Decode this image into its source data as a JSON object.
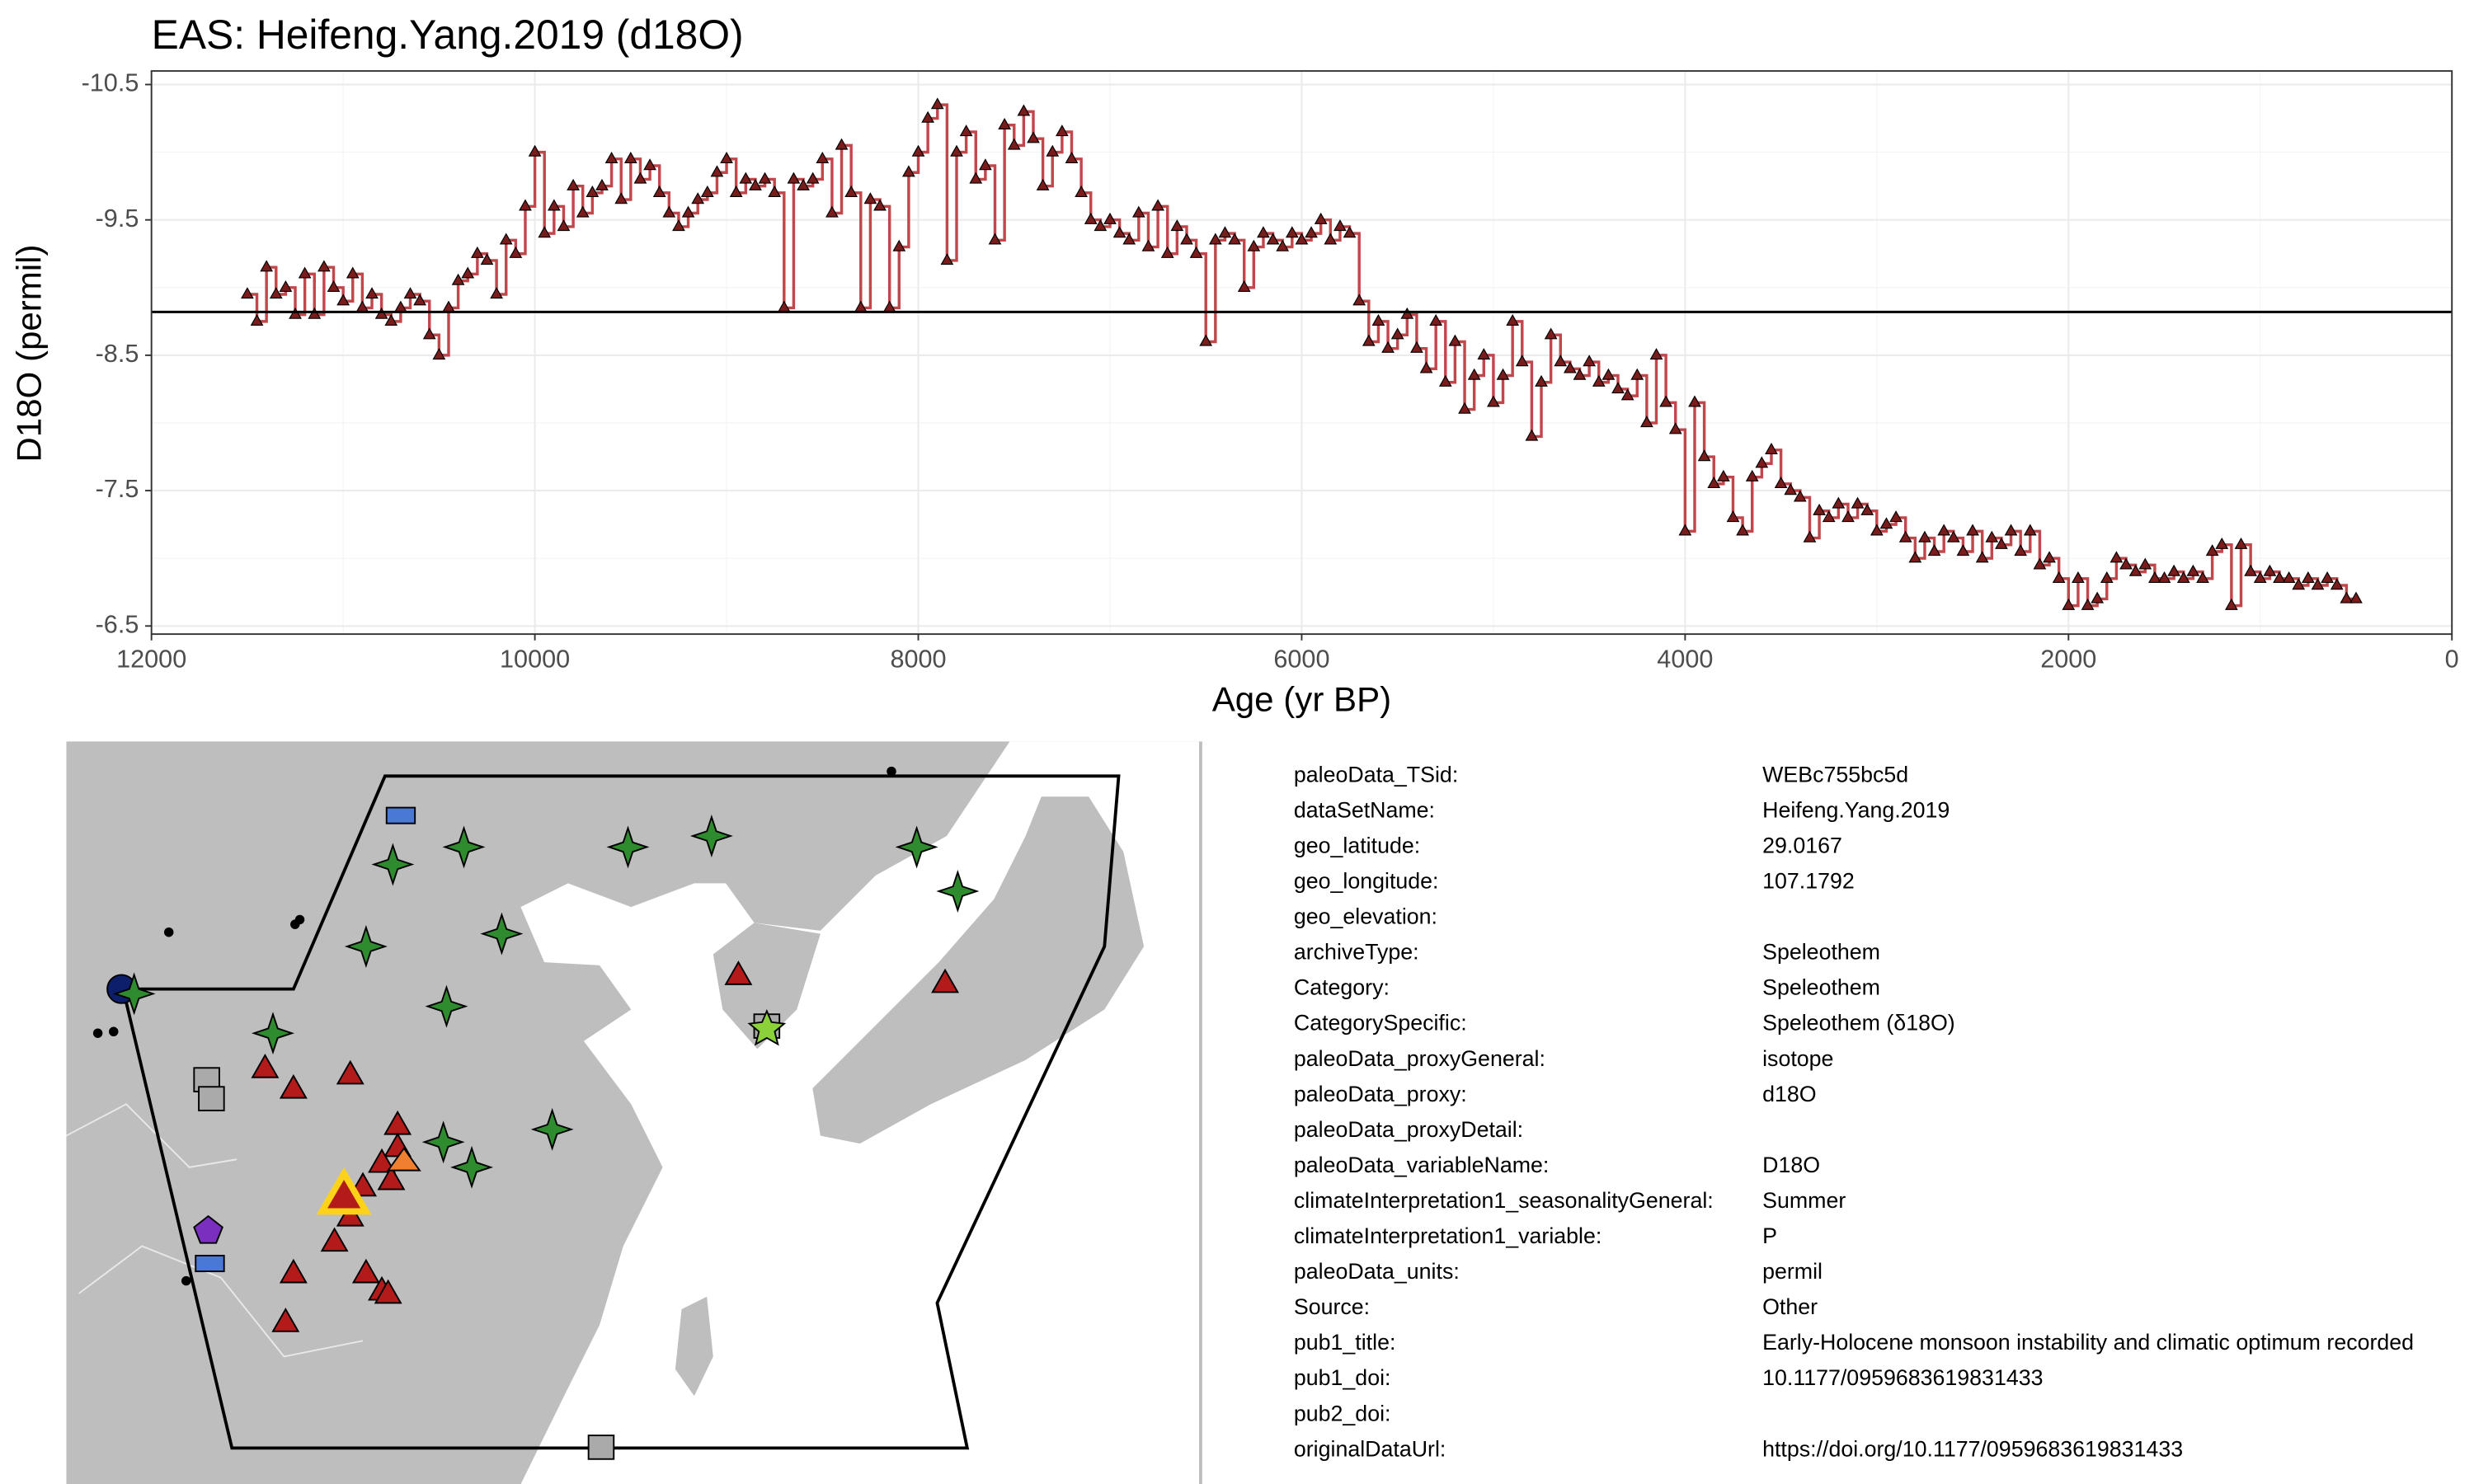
{
  "chart_data": {
    "type": "line",
    "title": "EAS: Heifeng.Yang.2019 (d18O)",
    "xlabel": "Age (yr BP)",
    "ylabel": "D18O (permil)",
    "x": [
      11500,
      11450,
      11400,
      11350,
      11300,
      11250,
      11200,
      11150,
      11100,
      11050,
      11000,
      10950,
      10900,
      10850,
      10800,
      10750,
      10700,
      10650,
      10600,
      10550,
      10500,
      10450,
      10400,
      10350,
      10300,
      10250,
      10200,
      10150,
      10100,
      10050,
      10000,
      9950,
      9900,
      9850,
      9800,
      9750,
      9700,
      9650,
      9600,
      9550,
      9500,
      9450,
      9400,
      9350,
      9300,
      9250,
      9200,
      9150,
      9100,
      9050,
      9000,
      8950,
      8900,
      8850,
      8800,
      8750,
      8700,
      8650,
      8600,
      8550,
      8500,
      8450,
      8400,
      8350,
      8300,
      8250,
      8200,
      8150,
      8100,
      8050,
      8000,
      7950,
      7900,
      7850,
      7800,
      7750,
      7700,
      7650,
      7600,
      7550,
      7500,
      7450,
      7400,
      7350,
      7300,
      7250,
      7200,
      7150,
      7100,
      7050,
      7000,
      6950,
      6900,
      6850,
      6800,
      6750,
      6700,
      6650,
      6600,
      6550,
      6500,
      6450,
      6400,
      6350,
      6300,
      6250,
      6200,
      6150,
      6100,
      6050,
      6000,
      5950,
      5900,
      5850,
      5800,
      5750,
      5700,
      5650,
      5600,
      5550,
      5500,
      5450,
      5400,
      5350,
      5300,
      5250,
      5200,
      5150,
      5100,
      5050,
      5000,
      4950,
      4900,
      4850,
      4800,
      4750,
      4700,
      4650,
      4600,
      4550,
      4500,
      4450,
      4400,
      4350,
      4300,
      4250,
      4200,
      4150,
      4100,
      4050,
      4000,
      3950,
      3900,
      3850,
      3800,
      3750,
      3700,
      3650,
      3600,
      3550,
      3500,
      3450,
      3400,
      3350,
      3300,
      3250,
      3200,
      3150,
      3100,
      3050,
      3000,
      2950,
      2900,
      2850,
      2800,
      2750,
      2700,
      2650,
      2600,
      2550,
      2500,
      2450,
      2400,
      2350,
      2300,
      2250,
      2200,
      2150,
      2100,
      2050,
      2000,
      1950,
      1900,
      1850,
      1800,
      1750,
      1700,
      1650,
      1600,
      1550,
      1500,
      1450,
      1400,
      1350,
      1300,
      1250,
      1200,
      1150,
      1100,
      1050,
      1000,
      950,
      900,
      850,
      800,
      750,
      700,
      650,
      600,
      550,
      500
    ],
    "values": [
      -8.95,
      -8.75,
      -9.15,
      -8.95,
      -9.0,
      -8.8,
      -9.1,
      -8.8,
      -9.15,
      -9.0,
      -8.9,
      -9.1,
      -8.85,
      -8.95,
      -8.8,
      -8.75,
      -8.85,
      -8.95,
      -8.9,
      -8.65,
      -8.5,
      -8.85,
      -9.05,
      -9.1,
      -9.25,
      -9.2,
      -8.95,
      -9.35,
      -9.25,
      -9.6,
      -10.0,
      -9.4,
      -9.6,
      -9.45,
      -9.75,
      -9.55,
      -9.7,
      -9.75,
      -9.95,
      -9.65,
      -9.95,
      -9.8,
      -9.9,
      -9.7,
      -9.55,
      -9.45,
      -9.55,
      -9.65,
      -9.7,
      -9.85,
      -9.95,
      -9.7,
      -9.8,
      -9.75,
      -9.8,
      -9.7,
      -8.85,
      -9.8,
      -9.75,
      -9.8,
      -9.95,
      -9.55,
      -10.05,
      -9.7,
      -8.85,
      -9.65,
      -9.6,
      -8.85,
      -9.3,
      -9.85,
      -10.0,
      -10.25,
      -10.35,
      -9.2,
      -10.0,
      -10.15,
      -9.8,
      -9.9,
      -9.35,
      -10.2,
      -10.05,
      -10.3,
      -10.1,
      -9.75,
      -10.0,
      -10.15,
      -9.95,
      -9.7,
      -9.5,
      -9.45,
      -9.5,
      -9.4,
      -9.35,
      -9.55,
      -9.3,
      -9.6,
      -9.25,
      -9.45,
      -9.35,
      -9.25,
      -8.6,
      -9.35,
      -9.4,
      -9.35,
      -9.0,
      -9.3,
      -9.4,
      -9.35,
      -9.3,
      -9.4,
      -9.35,
      -9.4,
      -9.5,
      -9.35,
      -9.45,
      -9.4,
      -8.9,
      -8.6,
      -8.75,
      -8.55,
      -8.65,
      -8.8,
      -8.55,
      -8.4,
      -8.75,
      -8.3,
      -8.6,
      -8.1,
      -8.35,
      -8.5,
      -8.15,
      -8.35,
      -8.75,
      -8.45,
      -7.9,
      -8.3,
      -8.65,
      -8.45,
      -8.4,
      -8.35,
      -8.45,
      -8.3,
      -8.35,
      -8.25,
      -8.2,
      -8.35,
      -8.0,
      -8.5,
      -8.15,
      -7.95,
      -7.2,
      -8.15,
      -7.75,
      -7.55,
      -7.6,
      -7.3,
      -7.2,
      -7.6,
      -7.7,
      -7.8,
      -7.55,
      -7.5,
      -7.45,
      -7.15,
      -7.35,
      -7.3,
      -7.4,
      -7.3,
      -7.4,
      -7.35,
      -7.2,
      -7.25,
      -7.3,
      -7.15,
      -7.0,
      -7.15,
      -7.05,
      -7.2,
      -7.15,
      -7.05,
      -7.2,
      -7.0,
      -7.15,
      -7.1,
      -7.2,
      -7.05,
      -7.2,
      -6.95,
      -7.0,
      -6.85,
      -6.65,
      -6.85,
      -6.65,
      -6.7,
      -6.85,
      -7.0,
      -6.95,
      -6.9,
      -6.95,
      -6.85,
      -6.85,
      -6.9,
      -6.85,
      -6.9,
      -6.85,
      -7.05,
      -7.1,
      -6.65,
      -7.1,
      -6.9,
      -6.85,
      -6.9,
      -6.85,
      -6.85,
      -6.8,
      -6.85,
      -6.8,
      -6.85,
      -6.8,
      -6.7,
      -6.7
    ],
    "color": "#c0484c",
    "marker_color": "#7a1c1c",
    "step": true,
    "hline": -8.82,
    "xlim": [
      0,
      12000
    ],
    "x_reversed": true,
    "xticks": [
      12000,
      10000,
      8000,
      6000,
      4000,
      2000,
      0
    ],
    "ylim": [
      -10.6,
      -6.44
    ],
    "y_reversed": true,
    "yticks": [
      -10.5,
      -9.5,
      -8.5,
      -7.5,
      -6.5
    ],
    "grid": true
  },
  "metadata": {
    "rows": [
      {
        "key": "paleoData_TSid:",
        "value": "WEBc755bc5d"
      },
      {
        "key": "dataSetName:",
        "value": "Heifeng.Yang.2019"
      },
      {
        "key": "geo_latitude:",
        "value": "29.0167"
      },
      {
        "key": "geo_longitude:",
        "value": "107.1792"
      },
      {
        "key": "geo_elevation:"
      },
      {
        "key": "archiveType:",
        "value": "Speleothem"
      },
      {
        "key": "Category:",
        "value": "Speleothem"
      },
      {
        "key": "CategorySpecific:",
        "value": "Speleothem (δ18O)"
      },
      {
        "key": "paleoData_proxyGeneral:",
        "value": "isotope"
      },
      {
        "key": "paleoData_proxy:",
        "value": "d18O"
      },
      {
        "key": "paleoData_proxyDetail:"
      },
      {
        "key": "paleoData_variableName:",
        "value": "D18O"
      },
      {
        "key": "climateInterpretation1_seasonalityGeneral:",
        "value": "Summer"
      },
      {
        "key": "climateInterpretation1_variable:",
        "value": "P"
      },
      {
        "key": "paleoData_units:",
        "value": "permil"
      },
      {
        "key": "Source:",
        "value": "Other"
      },
      {
        "key": "pub1_title:",
        "value": "Early-Holocene monsoon instability and climatic optimum recorded"
      },
      {
        "key": "pub1_doi:",
        "value": "10.1177/0959683619831433"
      },
      {
        "key": "pub2_doi:"
      },
      {
        "key": "originalDataUrl:",
        "value": "https://doi.org/10.1177/0959683619831433"
      }
    ]
  }
}
